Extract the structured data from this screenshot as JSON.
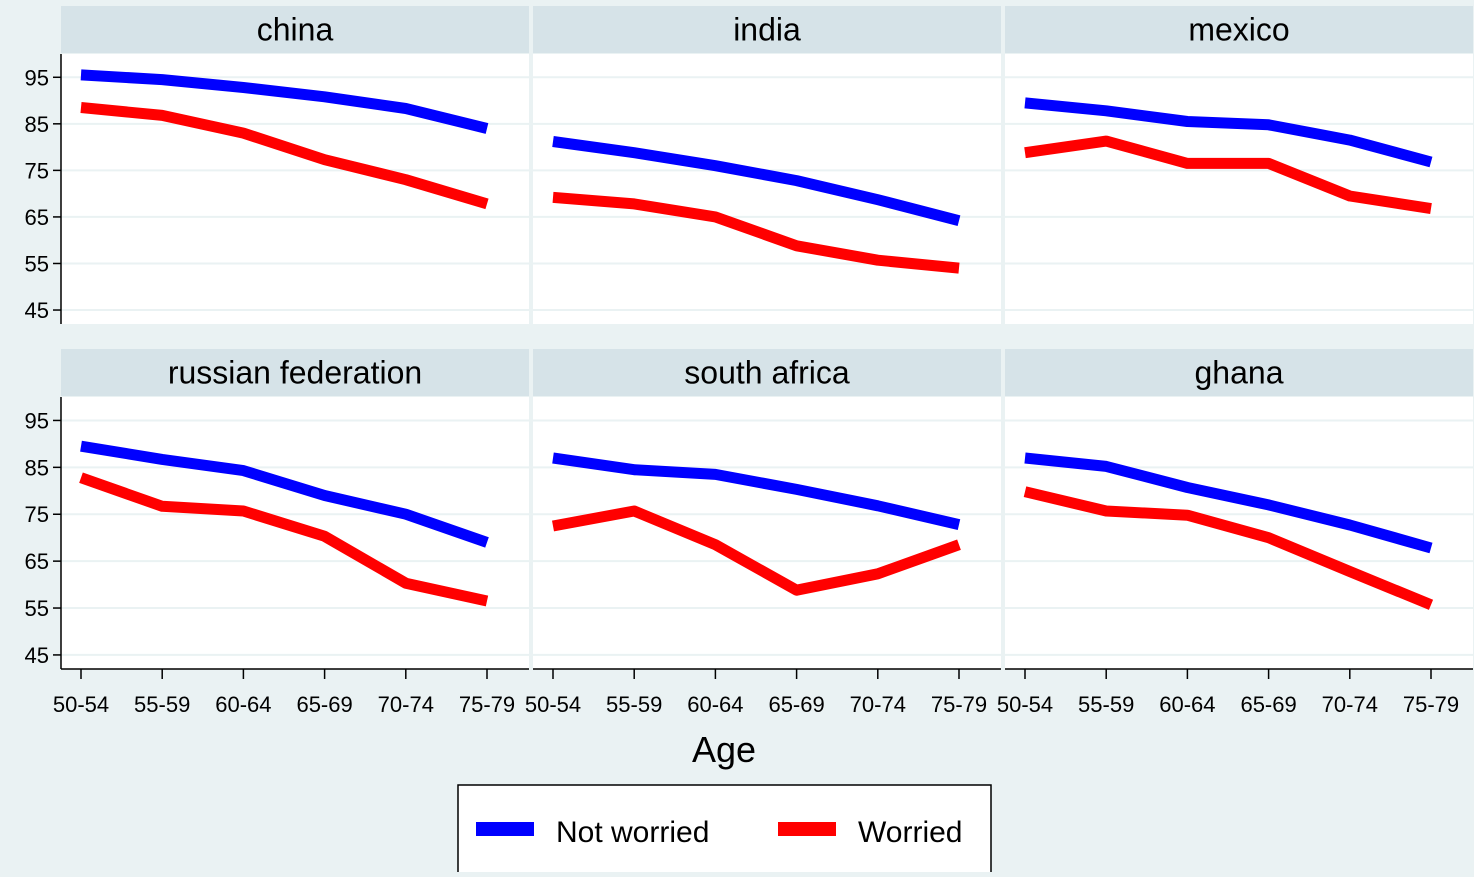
{
  "chart_data": {
    "type": "line",
    "xlabel": "Age",
    "ylabel": "",
    "ylim": [
      42,
      100
    ],
    "yticks": [
      45,
      55,
      65,
      75,
      85,
      95
    ],
    "categories": [
      "50-54",
      "55-59",
      "60-64",
      "65-69",
      "70-74",
      "75-79"
    ],
    "legend": {
      "placement": "bottom-center",
      "entries": [
        {
          "name": "Not worried",
          "color": "#0000ff"
        },
        {
          "name": "Worried",
          "color": "#ff0000"
        }
      ]
    },
    "panels": [
      {
        "title": "china",
        "series": [
          {
            "name": "Not worried",
            "color": "#0000ff",
            "values": [
              95.5,
              94.5,
              92.8,
              90.8,
              88.3,
              84.0
            ]
          },
          {
            "name": "Worried",
            "color": "#ff0000",
            "values": [
              88.5,
              86.8,
              83.0,
              77.3,
              73.0,
              67.8
            ]
          }
        ]
      },
      {
        "title": "india",
        "series": [
          {
            "name": "Not worried",
            "color": "#0000ff",
            "values": [
              81.2,
              78.8,
              76.0,
              72.8,
              68.7,
              64.2
            ]
          },
          {
            "name": "Worried",
            "color": "#ff0000",
            "values": [
              69.2,
              67.8,
              65.0,
              58.8,
              55.7,
              54.0
            ]
          }
        ]
      },
      {
        "title": "mexico",
        "series": [
          {
            "name": "Not worried",
            "color": "#0000ff",
            "values": [
              89.5,
              87.8,
              85.5,
              84.8,
              81.5,
              76.8
            ]
          },
          {
            "name": "Worried",
            "color": "#ff0000",
            "values": [
              78.8,
              81.3,
              76.5,
              76.5,
              69.5,
              66.8
            ]
          }
        ]
      },
      {
        "title": "russian federation",
        "series": [
          {
            "name": "Not worried",
            "color": "#0000ff",
            "values": [
              89.5,
              86.7,
              84.3,
              79.0,
              75.0,
              69.0
            ]
          },
          {
            "name": "Worried",
            "color": "#ff0000",
            "values": [
              82.8,
              76.7,
              75.7,
              70.3,
              60.3,
              56.5
            ]
          }
        ]
      },
      {
        "title": "south africa",
        "series": [
          {
            "name": "Not worried",
            "color": "#0000ff",
            "values": [
              87.0,
              84.5,
              83.5,
              80.3,
              76.8,
              72.8
            ]
          },
          {
            "name": "Worried",
            "color": "#ff0000",
            "values": [
              72.5,
              75.7,
              68.5,
              58.8,
              62.3,
              68.5
            ]
          }
        ]
      },
      {
        "title": "ghana",
        "series": [
          {
            "name": "Not worried",
            "color": "#0000ff",
            "values": [
              87.0,
              85.2,
              80.7,
              77.0,
              72.7,
              67.8
            ]
          },
          {
            "name": "Worried",
            "color": "#ff0000",
            "values": [
              79.8,
              75.7,
              74.8,
              70.0,
              62.8,
              55.7
            ]
          }
        ]
      }
    ]
  },
  "colors": {
    "background": "#eaf2f3",
    "plot_background": "#ffffff",
    "panel_header": "#d6e3e8",
    "gridline": "#eaf2f3"
  }
}
